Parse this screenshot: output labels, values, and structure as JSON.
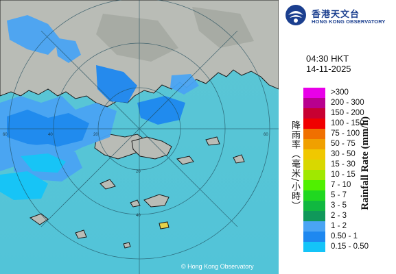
{
  "logo": {
    "name_cn": "香港天文台",
    "name_en": "HONG KONG OBSERVATORY"
  },
  "time": "04:30 HKT",
  "date": "14-11-2025",
  "legend": {
    "title_en": "Rainfall Rate (mm/h)",
    "title_cn": "降雨率（毫米/小時）",
    "items": [
      {
        "label": ">300",
        "color": "#e800e8"
      },
      {
        "label": "200 - 300",
        "color": "#b8008e"
      },
      {
        "label": "150 - 200",
        "color": "#c80032"
      },
      {
        "label": "100 - 150",
        "color": "#f00000"
      },
      {
        "label": "75 - 100",
        "color": "#f07000"
      },
      {
        "label": "50 - 75",
        "color": "#f0a000"
      },
      {
        "label": "30 - 50",
        "color": "#f0c800"
      },
      {
        "label": "15 - 30",
        "color": "#d8d800"
      },
      {
        "label": "10 - 15",
        "color": "#a0e800"
      },
      {
        "label": "7 - 10",
        "color": "#50f000"
      },
      {
        "label": "5 - 7",
        "color": "#20d820"
      },
      {
        "label": "3 - 5",
        "color": "#10b840"
      },
      {
        "label": "2 - 3",
        "color": "#10985a"
      },
      {
        "label": "1 - 2",
        "color": "#4aa4f4"
      },
      {
        "label": "0.50 - 1",
        "color": "#1e88f0"
      },
      {
        "label": "0.15 - 0.50",
        "color": "#14c4f8"
      }
    ]
  },
  "map": {
    "range_labels": [
      "60",
      "40",
      "20",
      "60",
      "40",
      "20"
    ],
    "sea_color": "#5bc9d9",
    "land_color": "#b8bbb6",
    "copyright": "© Hong Kong Observatory"
  }
}
